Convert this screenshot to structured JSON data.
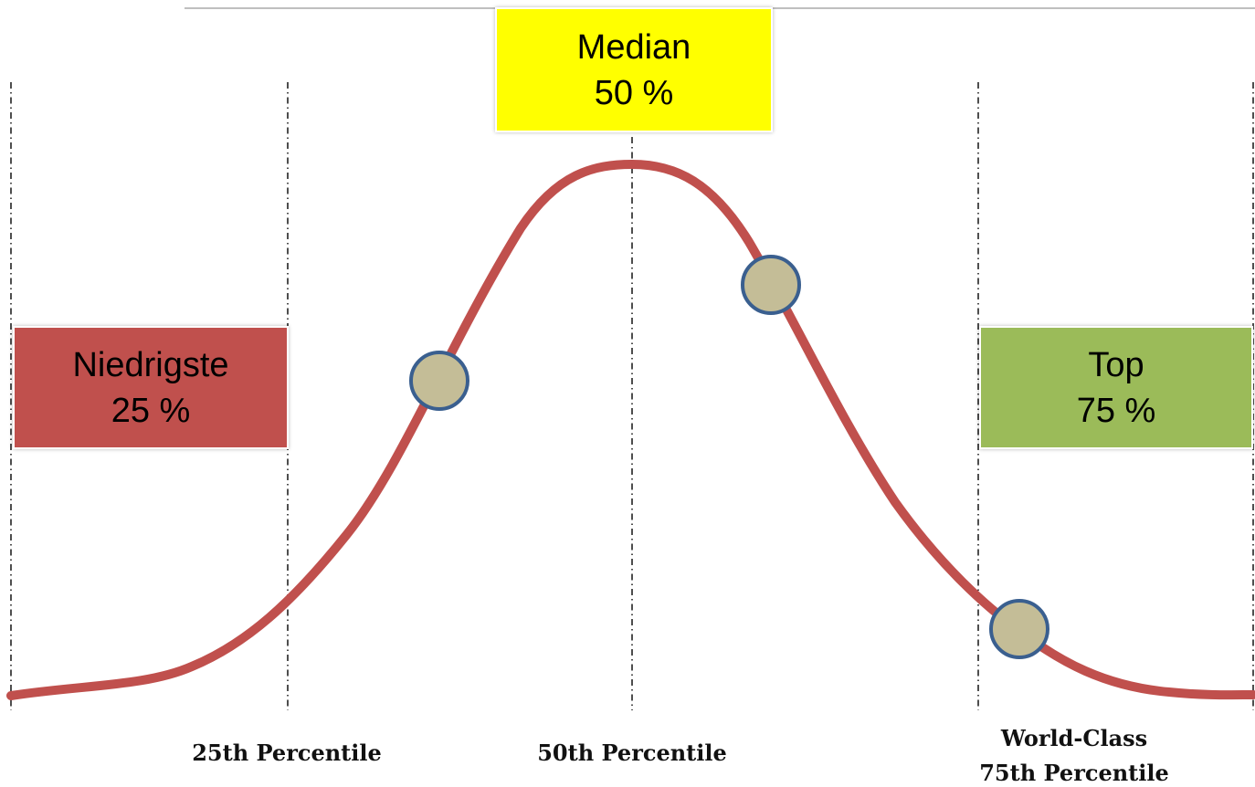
{
  "colors": {
    "curve": "#c0504d",
    "marker_fill": "#c4bd97",
    "marker_stroke": "#3a5f8f",
    "guide_line": "#222222",
    "top_rule": "#bfbfbf",
    "box_low": "#c0504d",
    "box_median": "#ffff00",
    "box_top": "#9bbb59"
  },
  "boxes": {
    "low": {
      "title": "Niedrigste",
      "value": "25 %"
    },
    "median": {
      "title": "Median",
      "value": "50 %"
    },
    "top": {
      "title": "Top",
      "value": "75 %"
    }
  },
  "percentile_labels": {
    "p25": "25th Percentile",
    "p50": "50th Percentile",
    "p75_line1": "World-Class",
    "p75_line2": "75th Percentile"
  },
  "markers": [
    "circle",
    "circle",
    "circle"
  ]
}
